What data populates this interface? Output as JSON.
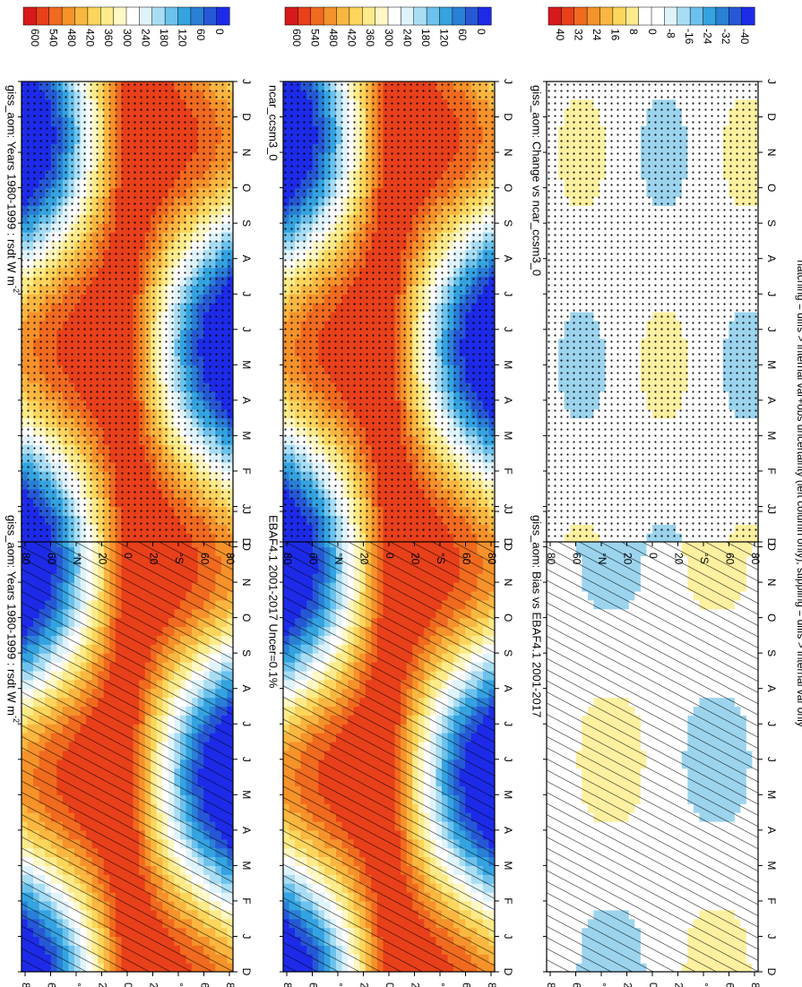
{
  "figure": {
    "orientation": "rotated 90 degrees clockwise (landscape page shown in portrait)",
    "footer": "hatching = diffs > internal var+obs uncertainty (left column only); stippling = diffs > internal var only"
  },
  "chart_data": [
    {
      "type": "heatmap",
      "panel": "left-top",
      "title": "giss_aom: Years 1980-1999 : rsdt W m",
      "title_superscript": "-2",
      "x_ticks": [
        "D",
        "J",
        "F",
        "M",
        "A",
        "M",
        "J",
        "J",
        "A",
        "S",
        "O",
        "N",
        "D",
        "J"
      ],
      "y_ticks": [
        "80",
        "60",
        "°N",
        "20",
        "0",
        "20",
        "°S",
        "60",
        "80"
      ],
      "ylim": [
        -90,
        90
      ],
      "colorbar": {
        "ticks": [
          "600",
          "540",
          "480",
          "420",
          "360",
          "300",
          "240",
          "180",
          "120",
          "60",
          "0"
        ],
        "range": [
          0,
          600
        ]
      },
      "field": "annual-cycle insolation (max at summer pole, min at winter pole)",
      "overlay": "hatching"
    },
    {
      "type": "heatmap",
      "panel": "left-middle",
      "title": "EBAF4.1 2001-2017 Uncer=0.1%",
      "x_ticks": [
        "D",
        "J",
        "F",
        "M",
        "A",
        "M",
        "J",
        "J",
        "A",
        "S",
        "O",
        "N",
        "D",
        "J"
      ],
      "y_ticks": [
        "80",
        "60",
        "°N",
        "20",
        "0",
        "20",
        "°S",
        "60",
        "80"
      ],
      "ylim": [
        -90,
        90
      ],
      "colorbar": {
        "ticks": [
          "600",
          "540",
          "480",
          "420",
          "360",
          "300",
          "240",
          "180",
          "120",
          "60",
          "0"
        ],
        "range": [
          0,
          600
        ]
      },
      "overlay": "hatching"
    },
    {
      "type": "heatmap",
      "panel": "left-bottom",
      "title": "giss_aom: Bias vs EBAF4.1 2001-2017",
      "x_ticks": [
        "D",
        "J",
        "F",
        "M",
        "A",
        "M",
        "J",
        "J",
        "A",
        "S",
        "O",
        "N",
        "D",
        "J"
      ],
      "y_ticks": [
        "80",
        "60",
        "°N",
        "20",
        "0",
        "20",
        "°S",
        "60",
        "80"
      ],
      "ylim": [
        -90,
        90
      ],
      "colorbar": {
        "ticks": [
          "40",
          "32",
          "24",
          "16",
          "8",
          "0",
          "-8",
          "-16",
          "-24",
          "-32",
          "-40"
        ],
        "range": [
          -40,
          40
        ]
      },
      "overlay": "hatching"
    },
    {
      "type": "heatmap",
      "panel": "right-top",
      "title": "giss_aom: Years 1980-1999 : rsdt W m",
      "title_superscript": "-2",
      "x_ticks": [
        "D",
        "J",
        "F",
        "M",
        "A",
        "M",
        "J",
        "J",
        "A",
        "S",
        "O",
        "N",
        "D",
        "J"
      ],
      "y_ticks": [
        "80",
        "60",
        "°N",
        "20",
        "0",
        "20",
        "°S",
        "60",
        "80"
      ],
      "ylim": [
        -90,
        90
      ],
      "colorbar": {
        "ticks": [
          "600",
          "540",
          "480",
          "420",
          "360",
          "300",
          "240",
          "180",
          "120",
          "60",
          "0"
        ],
        "range": [
          0,
          600
        ]
      },
      "overlay": "stippling"
    },
    {
      "type": "heatmap",
      "panel": "right-middle",
      "title": "ncar_ccsm3_0",
      "x_ticks": [
        "D",
        "J",
        "F",
        "M",
        "A",
        "M",
        "J",
        "J",
        "A",
        "S",
        "O",
        "N",
        "D",
        "J"
      ],
      "y_ticks": [
        "80",
        "60",
        "°N",
        "20",
        "0",
        "20",
        "°S",
        "60",
        "80"
      ],
      "ylim": [
        -90,
        90
      ],
      "colorbar": {
        "ticks": [
          "600",
          "540",
          "480",
          "420",
          "360",
          "300",
          "240",
          "180",
          "120",
          "60",
          "0"
        ],
        "range": [
          0,
          600
        ]
      },
      "overlay": "stippling"
    },
    {
      "type": "heatmap",
      "panel": "right-bottom",
      "title": "giss_aom: Change vs ncar_ccsm3_0",
      "x_ticks": [
        "D",
        "J",
        "F",
        "M",
        "A",
        "M",
        "J",
        "J",
        "A",
        "S",
        "O",
        "N",
        "D",
        "J"
      ],
      "y_ticks": [
        "80",
        "60",
        "°N",
        "20",
        "0",
        "20",
        "°S",
        "60",
        "80"
      ],
      "ylim": [
        -90,
        90
      ],
      "colorbar": {
        "ticks": [
          "40",
          "32",
          "24",
          "16",
          "8",
          "0",
          "-8",
          "-16",
          "-24",
          "-32",
          "-40"
        ],
        "range": [
          -40,
          40
        ]
      },
      "overlay": "stippling"
    }
  ],
  "colors": {
    "scale": [
      "#d7191c",
      "#e8401a",
      "#f06a1f",
      "#f5922a",
      "#f9b640",
      "#fcd55c",
      "#fdea8a",
      "#fff7c4",
      "#ffffff",
      "#dff3fb",
      "#a9ddf4",
      "#6cc2ec",
      "#34a3e0",
      "#2a7fd6",
      "#2658d6",
      "#1d2be8"
    ],
    "diff_pos": "#fdf0a0",
    "diff_neg": "#9cd4ee"
  }
}
